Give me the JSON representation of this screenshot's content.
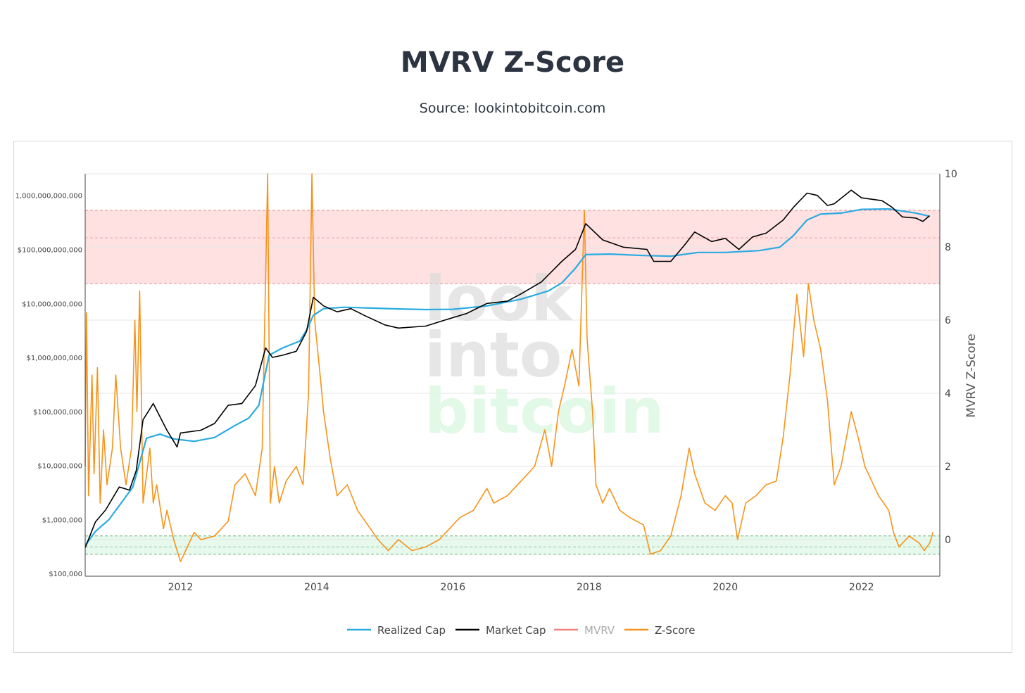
{
  "page": {
    "title": "MVRV Z-Score",
    "subtitle": "Source: lookintobitcoin.com"
  },
  "watermark": [
    "look",
    "into",
    "bitcoin"
  ],
  "colors": {
    "realized_cap": "#29abe2",
    "market_cap": "#000000",
    "mvrv": "#f08080",
    "zscore": "#f7931a",
    "red_band": "#ffe1e1",
    "green_band": "#e6f9ec"
  },
  "chart_data": {
    "type": "line",
    "x_ticks": [
      "2012",
      "2014",
      "2016",
      "2018",
      "2020",
      "2022"
    ],
    "left_axis": {
      "scale": "log",
      "ticks": [
        "1,000,000,000,000",
        "$100,000,000,000",
        "$10,000,000,000",
        "$1,000,000,000",
        "$100,000,000",
        "$10,000,000",
        "$1,000,000",
        "$100,000"
      ]
    },
    "right_axis": {
      "label": "MVRV Z-Score",
      "range": [
        -1,
        10
      ],
      "ticks": [
        "10",
        "8",
        "6",
        "4",
        "2",
        "0"
      ]
    },
    "bands": [
      {
        "name": "overvalued",
        "from": 7,
        "to": 9,
        "mid": 8.25
      },
      {
        "name": "undervalued",
        "from": -0.4,
        "to": 0.1,
        "mid": -0.2
      }
    ],
    "legend": [
      {
        "name": "Realized Cap",
        "color": "#29abe2",
        "active": true
      },
      {
        "name": "Market Cap",
        "color": "#000000",
        "active": true
      },
      {
        "name": "MVRV",
        "color": "#f08080",
        "active": false
      },
      {
        "name": "Z-Score",
        "color": "#f7931a",
        "active": true
      }
    ],
    "series": [
      {
        "name": "Realized Cap",
        "axis": "left",
        "points": [
          [
            2010.6,
            330000
          ],
          [
            2010.75,
            600000
          ],
          [
            2010.95,
            1000000
          ],
          [
            2011.15,
            2200000
          ],
          [
            2011.3,
            4000000
          ],
          [
            2011.5,
            32000000
          ],
          [
            2011.7,
            38000000
          ],
          [
            2011.9,
            31000000
          ],
          [
            2012.2,
            28000000
          ],
          [
            2012.5,
            33000000
          ],
          [
            2012.8,
            55000000
          ],
          [
            2013.0,
            75000000
          ],
          [
            2013.15,
            130000000
          ],
          [
            2013.3,
            1100000000
          ],
          [
            2013.5,
            1500000000
          ],
          [
            2013.75,
            2000000000
          ],
          [
            2013.85,
            3200000000
          ],
          [
            2013.95,
            6000000000
          ],
          [
            2014.1,
            8000000000
          ],
          [
            2014.4,
            8500000000
          ],
          [
            2014.8,
            8200000000
          ],
          [
            2015.2,
            7900000000
          ],
          [
            2015.6,
            7700000000
          ],
          [
            2016.0,
            7800000000
          ],
          [
            2016.5,
            9000000000
          ],
          [
            2017.0,
            12000000000
          ],
          [
            2017.4,
            17000000000
          ],
          [
            2017.6,
            24000000000
          ],
          [
            2017.8,
            45000000000
          ],
          [
            2017.95,
            80000000000
          ],
          [
            2018.3,
            82000000000
          ],
          [
            2018.8,
            77000000000
          ],
          [
            2019.2,
            75000000000
          ],
          [
            2019.6,
            88000000000
          ],
          [
            2020.0,
            88000000000
          ],
          [
            2020.5,
            95000000000
          ],
          [
            2020.8,
            110000000000
          ],
          [
            2021.0,
            180000000000
          ],
          [
            2021.2,
            350000000000
          ],
          [
            2021.4,
            450000000000
          ],
          [
            2021.7,
            470000000000
          ],
          [
            2022.0,
            550000000000
          ],
          [
            2022.4,
            560000000000
          ],
          [
            2022.8,
            470000000000
          ],
          [
            2023.0,
            410000000000
          ]
        ]
      },
      {
        "name": "Market Cap",
        "axis": "left",
        "points": [
          [
            2010.6,
            300000
          ],
          [
            2010.75,
            900000
          ],
          [
            2010.9,
            1500000
          ],
          [
            2011.1,
            4000000
          ],
          [
            2011.25,
            3500000
          ],
          [
            2011.35,
            8000000
          ],
          [
            2011.45,
            70000000
          ],
          [
            2011.6,
            140000000
          ],
          [
            2011.8,
            45000000
          ],
          [
            2011.95,
            22000000
          ],
          [
            2012.0,
            40000000
          ],
          [
            2012.3,
            45000000
          ],
          [
            2012.5,
            60000000
          ],
          [
            2012.7,
            130000000
          ],
          [
            2012.9,
            140000000
          ],
          [
            2013.1,
            300000000
          ],
          [
            2013.25,
            1500000000
          ],
          [
            2013.35,
            1000000000
          ],
          [
            2013.5,
            1100000000
          ],
          [
            2013.7,
            1300000000
          ],
          [
            2013.85,
            3000000000
          ],
          [
            2013.95,
            13000000000
          ],
          [
            2014.1,
            9000000000
          ],
          [
            2014.3,
            7000000000
          ],
          [
            2014.5,
            8000000000
          ],
          [
            2014.7,
            6000000000
          ],
          [
            2015.0,
            4000000000
          ],
          [
            2015.2,
            3500000000
          ],
          [
            2015.6,
            3800000000
          ],
          [
            2015.9,
            5000000000
          ],
          [
            2016.2,
            6500000000
          ],
          [
            2016.5,
            10000000000
          ],
          [
            2016.8,
            11000000000
          ],
          [
            2017.0,
            15000000000
          ],
          [
            2017.3,
            25000000000
          ],
          [
            2017.6,
            60000000000
          ],
          [
            2017.8,
            100000000000
          ],
          [
            2017.95,
            300000000000
          ],
          [
            2018.2,
            150000000000
          ],
          [
            2018.5,
            110000000000
          ],
          [
            2018.85,
            100000000000
          ],
          [
            2018.95,
            60000000000
          ],
          [
            2019.2,
            60000000000
          ],
          [
            2019.4,
            120000000000
          ],
          [
            2019.55,
            210000000000
          ],
          [
            2019.8,
            140000000000
          ],
          [
            2020.0,
            160000000000
          ],
          [
            2020.2,
            100000000000
          ],
          [
            2020.4,
            170000000000
          ],
          [
            2020.6,
            200000000000
          ],
          [
            2020.85,
            350000000000
          ],
          [
            2021.0,
            600000000000
          ],
          [
            2021.2,
            1100000000000
          ],
          [
            2021.35,
            1000000000000
          ],
          [
            2021.5,
            650000000000
          ],
          [
            2021.6,
            700000000000
          ],
          [
            2021.85,
            1250000000000
          ],
          [
            2022.0,
            900000000000
          ],
          [
            2022.3,
            800000000000
          ],
          [
            2022.45,
            600000000000
          ],
          [
            2022.6,
            400000000000
          ],
          [
            2022.8,
            380000000000
          ],
          [
            2022.9,
            330000000000
          ],
          [
            2023.0,
            420000000000
          ]
        ]
      },
      {
        "name": "Z-Score",
        "axis": "right",
        "points": [
          [
            2010.6,
            2.0
          ],
          [
            2010.62,
            6.2
          ],
          [
            2010.65,
            1.2
          ],
          [
            2010.7,
            4.5
          ],
          [
            2010.73,
            1.8
          ],
          [
            2010.78,
            4.7
          ],
          [
            2010.82,
            1.0
          ],
          [
            2010.87,
            3.0
          ],
          [
            2010.92,
            1.5
          ],
          [
            2011.0,
            2.5
          ],
          [
            2011.05,
            4.5
          ],
          [
            2011.12,
            2.5
          ],
          [
            2011.2,
            1.5
          ],
          [
            2011.28,
            2.5
          ],
          [
            2011.33,
            6.0
          ],
          [
            2011.36,
            3.5
          ],
          [
            2011.4,
            6.8
          ],
          [
            2011.45,
            1.0
          ],
          [
            2011.55,
            2.5
          ],
          [
            2011.6,
            1.0
          ],
          [
            2011.65,
            1.5
          ],
          [
            2011.75,
            0.3
          ],
          [
            2011.8,
            0.8
          ],
          [
            2011.9,
            0.0
          ],
          [
            2012.0,
            -0.6
          ],
          [
            2012.1,
            -0.2
          ],
          [
            2012.2,
            0.2
          ],
          [
            2012.3,
            0.0
          ],
          [
            2012.5,
            0.1
          ],
          [
            2012.7,
            0.5
          ],
          [
            2012.8,
            1.5
          ],
          [
            2012.95,
            1.8
          ],
          [
            2013.1,
            1.2
          ],
          [
            2013.2,
            2.5
          ],
          [
            2013.28,
            10.0
          ],
          [
            2013.32,
            1.0
          ],
          [
            2013.38,
            2.0
          ],
          [
            2013.45,
            1.0
          ],
          [
            2013.55,
            1.6
          ],
          [
            2013.7,
            2.0
          ],
          [
            2013.8,
            1.5
          ],
          [
            2013.88,
            4.0
          ],
          [
            2013.93,
            10.0
          ],
          [
            2013.97,
            6.0
          ],
          [
            2014.05,
            4.5
          ],
          [
            2014.1,
            3.5
          ],
          [
            2014.2,
            2.2
          ],
          [
            2014.3,
            1.2
          ],
          [
            2014.45,
            1.5
          ],
          [
            2014.6,
            0.8
          ],
          [
            2014.75,
            0.4
          ],
          [
            2014.9,
            0.0
          ],
          [
            2015.05,
            -0.3
          ],
          [
            2015.2,
            0.0
          ],
          [
            2015.4,
            -0.3
          ],
          [
            2015.6,
            -0.2
          ],
          [
            2015.8,
            0.0
          ],
          [
            2015.95,
            0.3
          ],
          [
            2016.1,
            0.6
          ],
          [
            2016.3,
            0.8
          ],
          [
            2016.5,
            1.4
          ],
          [
            2016.6,
            1.0
          ],
          [
            2016.8,
            1.2
          ],
          [
            2017.0,
            1.6
          ],
          [
            2017.2,
            2.0
          ],
          [
            2017.35,
            3.0
          ],
          [
            2017.45,
            2.0
          ],
          [
            2017.55,
            3.5
          ],
          [
            2017.65,
            4.3
          ],
          [
            2017.75,
            5.2
          ],
          [
            2017.85,
            4.2
          ],
          [
            2017.93,
            9.0
          ],
          [
            2017.97,
            5.5
          ],
          [
            2018.05,
            3.5
          ],
          [
            2018.1,
            1.5
          ],
          [
            2018.2,
            1.0
          ],
          [
            2018.3,
            1.4
          ],
          [
            2018.45,
            0.8
          ],
          [
            2018.6,
            0.6
          ],
          [
            2018.8,
            0.4
          ],
          [
            2018.9,
            -0.4
          ],
          [
            2019.05,
            -0.3
          ],
          [
            2019.2,
            0.1
          ],
          [
            2019.35,
            1.2
          ],
          [
            2019.47,
            2.5
          ],
          [
            2019.55,
            1.8
          ],
          [
            2019.7,
            1.0
          ],
          [
            2019.85,
            0.8
          ],
          [
            2020.0,
            1.2
          ],
          [
            2020.1,
            1.0
          ],
          [
            2020.18,
            0.0
          ],
          [
            2020.3,
            1.0
          ],
          [
            2020.45,
            1.2
          ],
          [
            2020.6,
            1.5
          ],
          [
            2020.75,
            1.6
          ],
          [
            2020.85,
            2.8
          ],
          [
            2020.95,
            4.5
          ],
          [
            2021.05,
            6.7
          ],
          [
            2021.15,
            5.0
          ],
          [
            2021.22,
            7.0
          ],
          [
            2021.3,
            6.0
          ],
          [
            2021.4,
            5.2
          ],
          [
            2021.5,
            3.8
          ],
          [
            2021.6,
            1.5
          ],
          [
            2021.7,
            2.0
          ],
          [
            2021.85,
            3.5
          ],
          [
            2021.95,
            2.8
          ],
          [
            2022.05,
            2.0
          ],
          [
            2022.15,
            1.6
          ],
          [
            2022.25,
            1.2
          ],
          [
            2022.4,
            0.8
          ],
          [
            2022.47,
            0.2
          ],
          [
            2022.55,
            -0.2
          ],
          [
            2022.7,
            0.1
          ],
          [
            2022.85,
            -0.1
          ],
          [
            2022.92,
            -0.3
          ],
          [
            2023.0,
            -0.1
          ],
          [
            2023.05,
            0.2
          ]
        ]
      }
    ]
  }
}
